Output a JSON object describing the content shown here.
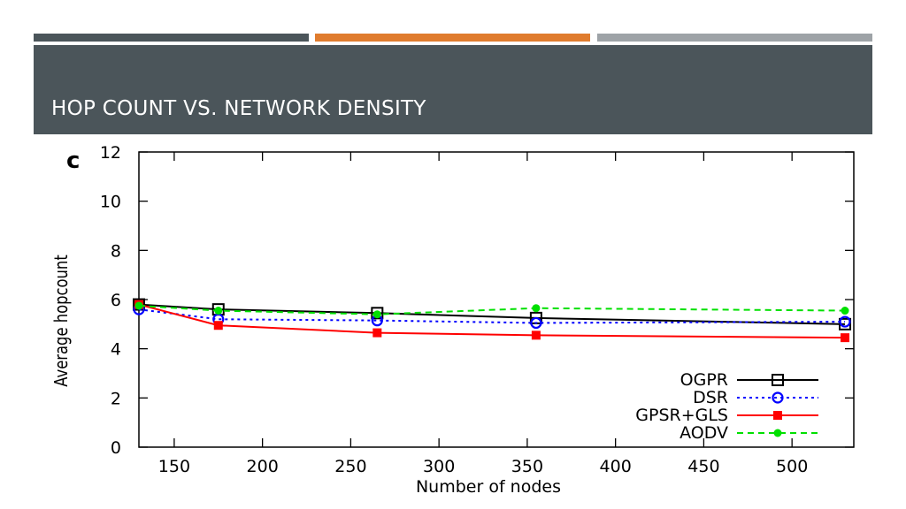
{
  "slide": {
    "title": "HOP COUNT VS. NETWORK DENSITY",
    "accent_colors": [
      "#4b555a",
      "#e07c2e",
      "#9ea3a7"
    ],
    "band_color": "#4b555a"
  },
  "chart_data": {
    "type": "line",
    "panel_label": "c",
    "xlabel": "Number of nodes",
    "ylabel": "Average hopcount",
    "xlim": [
      130,
      535
    ],
    "ylim": [
      0,
      12
    ],
    "xticks": [
      150,
      200,
      250,
      300,
      350,
      400,
      450,
      500
    ],
    "yticks": [
      0,
      2,
      4,
      6,
      8,
      10,
      12
    ],
    "grid": false,
    "legend_position": "bottom-right",
    "series": [
      {
        "name": "OGPR",
        "color": "#000000",
        "dash": "solid",
        "marker": "square-open",
        "x": [
          130,
          175,
          265,
          355,
          530
        ],
        "y": [
          5.8,
          5.6,
          5.45,
          5.25,
          5.0
        ]
      },
      {
        "name": "DSR",
        "color": "#0000ff",
        "dash": "dotted",
        "marker": "circle-open",
        "x": [
          130,
          175,
          265,
          355,
          530
        ],
        "y": [
          5.6,
          5.2,
          5.15,
          5.05,
          5.1
        ]
      },
      {
        "name": "GPSR+GLS",
        "color": "#ff0000",
        "dash": "solid",
        "marker": "square-filled",
        "x": [
          130,
          175,
          265,
          355,
          530
        ],
        "y": [
          5.8,
          4.95,
          4.65,
          4.55,
          4.45
        ]
      },
      {
        "name": "AODV",
        "color": "#00e000",
        "dash": "dashed",
        "marker": "circle-filled",
        "x": [
          130,
          175,
          265,
          355,
          530
        ],
        "y": [
          5.75,
          5.55,
          5.4,
          5.65,
          5.55
        ]
      }
    ]
  }
}
